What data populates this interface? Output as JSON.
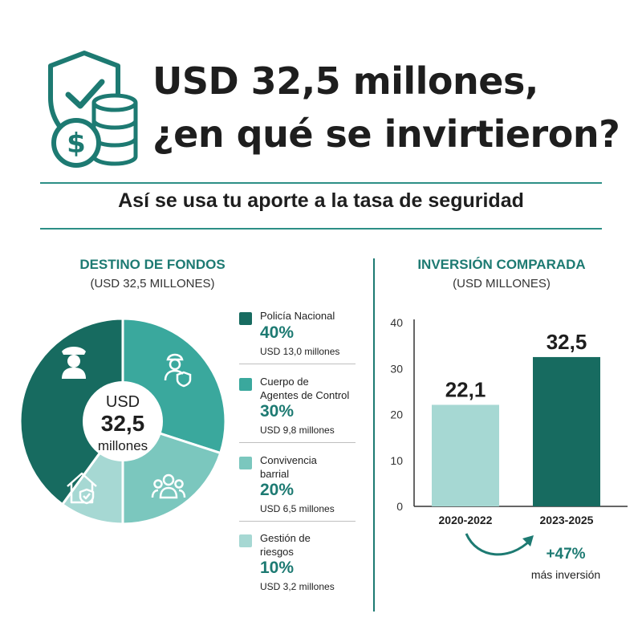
{
  "header": {
    "title_line1": "USD 32,5 millones,",
    "title_line2": "¿en qué se invirtieron?",
    "subtitle": "Así se usa tu aporte a la tasa de seguridad",
    "icon": "shield-coins-icon"
  },
  "colors": {
    "dark_teal": "#176b60",
    "teal": "#3aa89d",
    "mid_teal": "#7bc7be",
    "light_teal": "#a6d8d3",
    "accent_text": "#1d7a72"
  },
  "donut": {
    "title": "DESTINO DE FONDOS",
    "subtitle": "(USD 32,5 MILLONES)",
    "center_line1": "USD",
    "center_line2": "32,5",
    "center_line3": "millones"
  },
  "bars_panel": {
    "title": "INVERSIÓN COMPARADA",
    "subtitle": "(USD MILLONES)",
    "growth_pct": "+47%",
    "growth_note": "más inversión"
  },
  "chart_data": [
    {
      "type": "pie",
      "title": "DESTINO DE FONDOS",
      "subtitle": "(USD 32,5 MILLONES)",
      "slices": [
        {
          "label_lines": [
            "Policía Nacional"
          ],
          "value": 40,
          "pct_label": "40%",
          "amount": "USD 13,0 millones",
          "color": "#176b60",
          "icon": "police-officer-icon"
        },
        {
          "label_lines": [
            "Cuerpo de",
            "Agentes de Control"
          ],
          "value": 30,
          "pct_label": "30%",
          "amount": "USD 9,8 millones",
          "color": "#3aa89d",
          "icon": "control-agent-icon"
        },
        {
          "label_lines": [
            "Convivencia",
            "barrial"
          ],
          "value": 20,
          "pct_label": "20%",
          "amount": "USD 6,5 millones",
          "color": "#7bc7be",
          "icon": "community-group-icon"
        },
        {
          "label_lines": [
            "Gestión de",
            "riesgos"
          ],
          "value": 10,
          "pct_label": "10%",
          "amount": "USD 3,2 millones",
          "color": "#a6d8d3",
          "icon": "safe-home-icon"
        }
      ]
    },
    {
      "type": "bar",
      "title": "INVERSIÓN COMPARADA",
      "subtitle": "(USD MILLONES)",
      "categories": [
        "2020-2022",
        "2023-2025"
      ],
      "values": [
        22.1,
        32.5
      ],
      "value_labels": [
        "22,1",
        "32,5"
      ],
      "bar_colors": [
        "#a6d8d3",
        "#176b60"
      ],
      "ylim": [
        0,
        40
      ],
      "yticks": [
        "0",
        "10",
        "20",
        "30",
        "40"
      ],
      "grid": false
    }
  ]
}
